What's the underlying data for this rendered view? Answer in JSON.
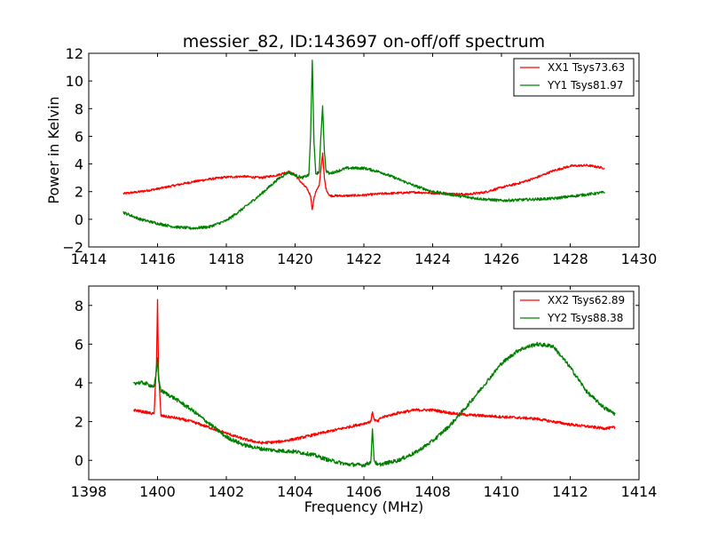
{
  "figure": {
    "title": "messier_82, ID:143697 on-off/off spectrum"
  },
  "chart_data": [
    {
      "type": "line",
      "title": "messier_82, ID:143697 on-off/off spectrum",
      "xlabel": "",
      "ylabel": "Power in Kelvin",
      "xlim": [
        1414,
        1430
      ],
      "ylim": [
        -2,
        12
      ],
      "xticks": [
        1414,
        1416,
        1418,
        1420,
        1422,
        1424,
        1426,
        1428,
        1430
      ],
      "yticks": [
        -2,
        0,
        2,
        4,
        6,
        8,
        10,
        12
      ],
      "xtick_labels": [
        "1414",
        "1416",
        "1418",
        "1420",
        "1422",
        "1424",
        "1426",
        "1428",
        "1430"
      ],
      "ytick_labels": [
        "−2",
        "0",
        "2",
        "4",
        "6",
        "8",
        "10",
        "12"
      ],
      "legend_position": "upper right",
      "series": [
        {
          "name": "XX1 Tsys73.63",
          "color": "#ff0000",
          "noise": 0.08,
          "x": [
            1415.0,
            1415.5,
            1416.0,
            1416.5,
            1417.0,
            1417.5,
            1418.0,
            1418.5,
            1419.0,
            1419.5,
            1419.8,
            1420.0,
            1420.2,
            1420.35,
            1420.45,
            1420.5,
            1420.55,
            1420.6,
            1420.7,
            1420.75,
            1420.8,
            1420.85,
            1420.9,
            1421.0,
            1421.5,
            1422.0,
            1422.5,
            1423.0,
            1423.5,
            1424.0,
            1424.5,
            1425.0,
            1425.5,
            1426.0,
            1426.5,
            1427.0,
            1427.5,
            1428.0,
            1428.5,
            1429.0
          ],
          "y": [
            1.85,
            2.0,
            2.2,
            2.45,
            2.7,
            2.9,
            3.05,
            3.1,
            3.0,
            3.2,
            3.45,
            3.2,
            2.6,
            2.2,
            1.7,
            0.7,
            1.5,
            2.0,
            2.4,
            3.6,
            4.8,
            3.0,
            2.2,
            1.7,
            1.7,
            1.75,
            1.85,
            1.9,
            1.95,
            1.9,
            1.85,
            1.8,
            1.95,
            2.3,
            2.6,
            3.0,
            3.5,
            3.85,
            3.9,
            3.7
          ]
        },
        {
          "name": "YY1 Tsys81.97",
          "color": "#008000",
          "noise": 0.1,
          "x": [
            1415.0,
            1415.5,
            1416.0,
            1416.5,
            1417.0,
            1417.5,
            1418.0,
            1418.5,
            1419.0,
            1419.5,
            1419.8,
            1420.0,
            1420.2,
            1420.4,
            1420.45,
            1420.5,
            1420.55,
            1420.6,
            1420.7,
            1420.75,
            1420.8,
            1420.85,
            1420.9,
            1421.0,
            1421.5,
            1422.0,
            1422.5,
            1423.0,
            1423.5,
            1424.0,
            1424.5,
            1425.0,
            1425.5,
            1426.0,
            1426.5,
            1427.0,
            1427.5,
            1428.0,
            1428.5,
            1429.0
          ],
          "y": [
            0.5,
            0.0,
            -0.3,
            -0.55,
            -0.65,
            -0.55,
            -0.1,
            0.8,
            1.8,
            2.9,
            3.4,
            3.2,
            3.0,
            3.2,
            6.0,
            11.5,
            5.5,
            3.3,
            3.4,
            6.0,
            8.2,
            5.0,
            3.5,
            3.3,
            3.7,
            3.7,
            3.4,
            2.9,
            2.4,
            2.0,
            1.8,
            1.6,
            1.45,
            1.35,
            1.4,
            1.45,
            1.5,
            1.65,
            1.8,
            1.95
          ]
        }
      ]
    },
    {
      "type": "line",
      "title": "",
      "xlabel": "Frequency (MHz)",
      "ylabel": "",
      "xlim": [
        1398,
        1414
      ],
      "ylim": [
        -1,
        9
      ],
      "xticks": [
        1398,
        1400,
        1402,
        1404,
        1406,
        1408,
        1410,
        1412,
        1414
      ],
      "yticks": [
        0,
        2,
        4,
        6,
        8
      ],
      "xtick_labels": [
        "1398",
        "1400",
        "1402",
        "1404",
        "1406",
        "1408",
        "1410",
        "1412",
        "1414"
      ],
      "ytick_labels": [
        "0",
        "2",
        "4",
        "6",
        "8"
      ],
      "legend_position": "upper right",
      "series": [
        {
          "name": "XX2 Tsys62.89",
          "color": "#ff0000",
          "noise": 0.07,
          "x": [
            1399.3,
            1399.6,
            1399.9,
            1399.97,
            1400.0,
            1400.03,
            1400.1,
            1400.5,
            1401.0,
            1401.5,
            1402.0,
            1402.5,
            1403.0,
            1403.5,
            1404.0,
            1404.5,
            1405.0,
            1405.5,
            1406.0,
            1406.2,
            1406.25,
            1406.3,
            1406.4,
            1406.5,
            1407.0,
            1407.5,
            1408.0,
            1408.5,
            1409.0,
            1409.5,
            1410.0,
            1410.5,
            1411.0,
            1411.5,
            1412.0,
            1412.5,
            1413.0,
            1413.3
          ],
          "y": [
            2.6,
            2.5,
            2.4,
            5.0,
            8.3,
            4.5,
            2.3,
            2.2,
            2.0,
            1.7,
            1.4,
            1.1,
            0.9,
            0.95,
            1.1,
            1.3,
            1.5,
            1.7,
            1.9,
            2.0,
            2.5,
            2.1,
            2.0,
            2.2,
            2.45,
            2.6,
            2.6,
            2.45,
            2.35,
            2.3,
            2.25,
            2.2,
            2.15,
            2.0,
            1.85,
            1.75,
            1.65,
            1.7
          ]
        },
        {
          "name": "YY2 Tsys88.38",
          "color": "#008000",
          "noise": 0.1,
          "x": [
            1399.3,
            1399.6,
            1399.9,
            1399.97,
            1400.0,
            1400.03,
            1400.1,
            1400.5,
            1401.0,
            1401.5,
            1402.0,
            1402.5,
            1403.0,
            1403.5,
            1404.0,
            1404.5,
            1405.0,
            1405.5,
            1406.0,
            1406.2,
            1406.25,
            1406.3,
            1406.4,
            1406.5,
            1407.0,
            1407.5,
            1408.0,
            1408.5,
            1409.0,
            1409.5,
            1410.0,
            1410.5,
            1411.0,
            1411.5,
            1412.0,
            1412.5,
            1413.0,
            1413.3
          ],
          "y": [
            4.0,
            4.0,
            3.8,
            4.6,
            5.3,
            4.2,
            3.6,
            3.2,
            2.6,
            1.9,
            1.2,
            0.8,
            0.6,
            0.5,
            0.45,
            0.3,
            0.0,
            -0.2,
            -0.25,
            -0.1,
            1.6,
            0.0,
            -0.25,
            -0.2,
            0.0,
            0.4,
            1.0,
            1.8,
            2.8,
            3.9,
            5.0,
            5.7,
            6.0,
            5.9,
            4.8,
            3.5,
            2.7,
            2.4
          ]
        }
      ]
    }
  ]
}
